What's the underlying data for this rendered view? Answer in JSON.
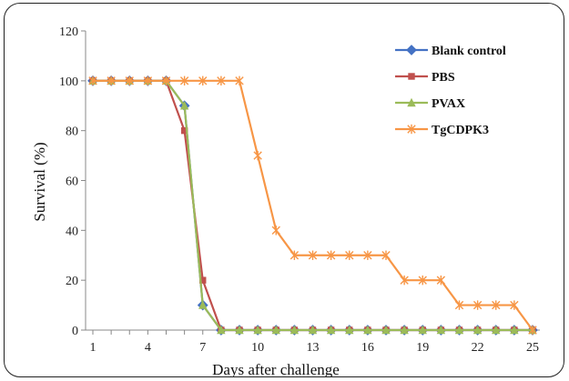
{
  "chart_data": {
    "type": "line",
    "title": "",
    "xlabel": "Days after challenge",
    "ylabel": "Survival (%)",
    "x": [
      1,
      2,
      3,
      4,
      5,
      6,
      7,
      8,
      9,
      10,
      11,
      12,
      13,
      14,
      15,
      16,
      17,
      18,
      19,
      20,
      21,
      22,
      23,
      24,
      25
    ],
    "xticks": [
      1,
      4,
      7,
      10,
      13,
      16,
      19,
      22,
      25
    ],
    "xlim": [
      1,
      25
    ],
    "ylim": [
      0,
      120
    ],
    "yticks": [
      0,
      20,
      40,
      60,
      80,
      100,
      120
    ],
    "grid": false,
    "legend_position": "top-right",
    "series": [
      {
        "name": "Blank control",
        "color": "#4472C4",
        "marker": "diamond",
        "values": [
          100,
          100,
          100,
          100,
          100,
          90,
          10,
          0,
          0,
          0,
          0,
          0,
          0,
          0,
          0,
          0,
          0,
          0,
          0,
          0,
          0,
          0,
          0,
          0,
          0
        ]
      },
      {
        "name": "PBS",
        "color": "#C0504D",
        "marker": "square",
        "values": [
          100,
          100,
          100,
          100,
          100,
          80,
          20,
          0,
          0,
          0,
          0,
          0,
          0,
          0,
          0,
          0,
          0,
          0,
          0,
          0,
          0,
          0,
          0,
          0,
          0
        ]
      },
      {
        "name": "PVAX",
        "color": "#9BBB59",
        "marker": "triangle",
        "values": [
          100,
          100,
          100,
          100,
          100,
          90,
          10,
          0,
          0,
          0,
          0,
          0,
          0,
          0,
          0,
          0,
          0,
          0,
          0,
          0,
          0,
          0,
          0,
          0,
          0
        ]
      },
      {
        "name": "TgCDPK3",
        "color": "#F79646",
        "marker": "star",
        "values": [
          100,
          100,
          100,
          100,
          100,
          100,
          100,
          100,
          100,
          70,
          40,
          30,
          30,
          30,
          30,
          30,
          30,
          20,
          20,
          20,
          10,
          10,
          10,
          10,
          0
        ]
      }
    ]
  }
}
